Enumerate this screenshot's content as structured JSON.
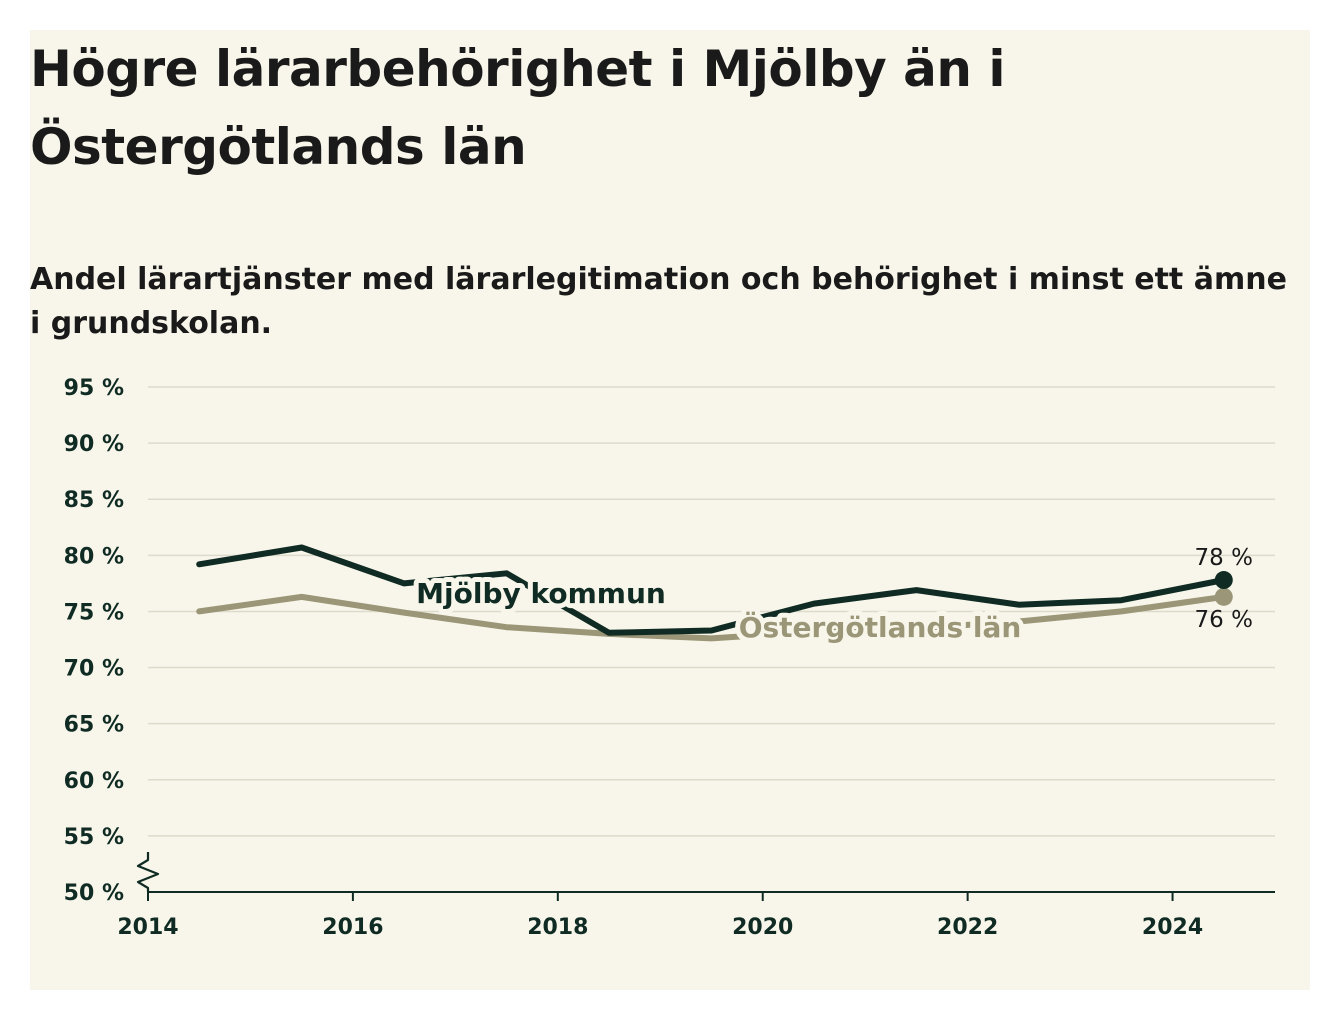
{
  "chart_data": {
    "type": "line",
    "title": "Högre lärarbehörighet i Mjölby än i Östergötlands län",
    "subtitle": "Andel lärartjänster med lärarlegitimation och behörighet i minst ett ämne i grundskolan.",
    "xlabel": "",
    "ylabel": "",
    "x": [
      2014.5,
      2015.5,
      2016.5,
      2017.5,
      2018.5,
      2019.5,
      2020.5,
      2021.5,
      2022.5,
      2023.5,
      2024.5
    ],
    "xlim": [
      2014,
      2025
    ],
    "ylim": [
      50,
      95
    ],
    "x_ticks": [
      2014,
      2016,
      2018,
      2020,
      2022,
      2024
    ],
    "y_ticks": [
      50,
      55,
      60,
      65,
      70,
      75,
      80,
      85,
      90,
      95
    ],
    "y_tick_labels": [
      "50 %",
      "55 %",
      "60 %",
      "65 %",
      "70 %",
      "75 %",
      "80 %",
      "85 %",
      "90 %",
      "95 %"
    ],
    "grid": true,
    "axis_break": true,
    "series": [
      {
        "name": "Mjölby kommun",
        "color": "#0f2b23",
        "values": [
          79.2,
          80.7,
          77.5,
          78.4,
          73.1,
          73.3,
          75.7,
          76.9,
          75.6,
          76.0,
          77.8
        ],
        "end_label": "78 %"
      },
      {
        "name": "Östergötlands län",
        "color": "#9a9677",
        "values": [
          75.0,
          76.3,
          74.9,
          73.6,
          73.0,
          72.6,
          73.2,
          73.5,
          74.1,
          75.0,
          76.3
        ],
        "end_label": "76 %"
      }
    ]
  }
}
